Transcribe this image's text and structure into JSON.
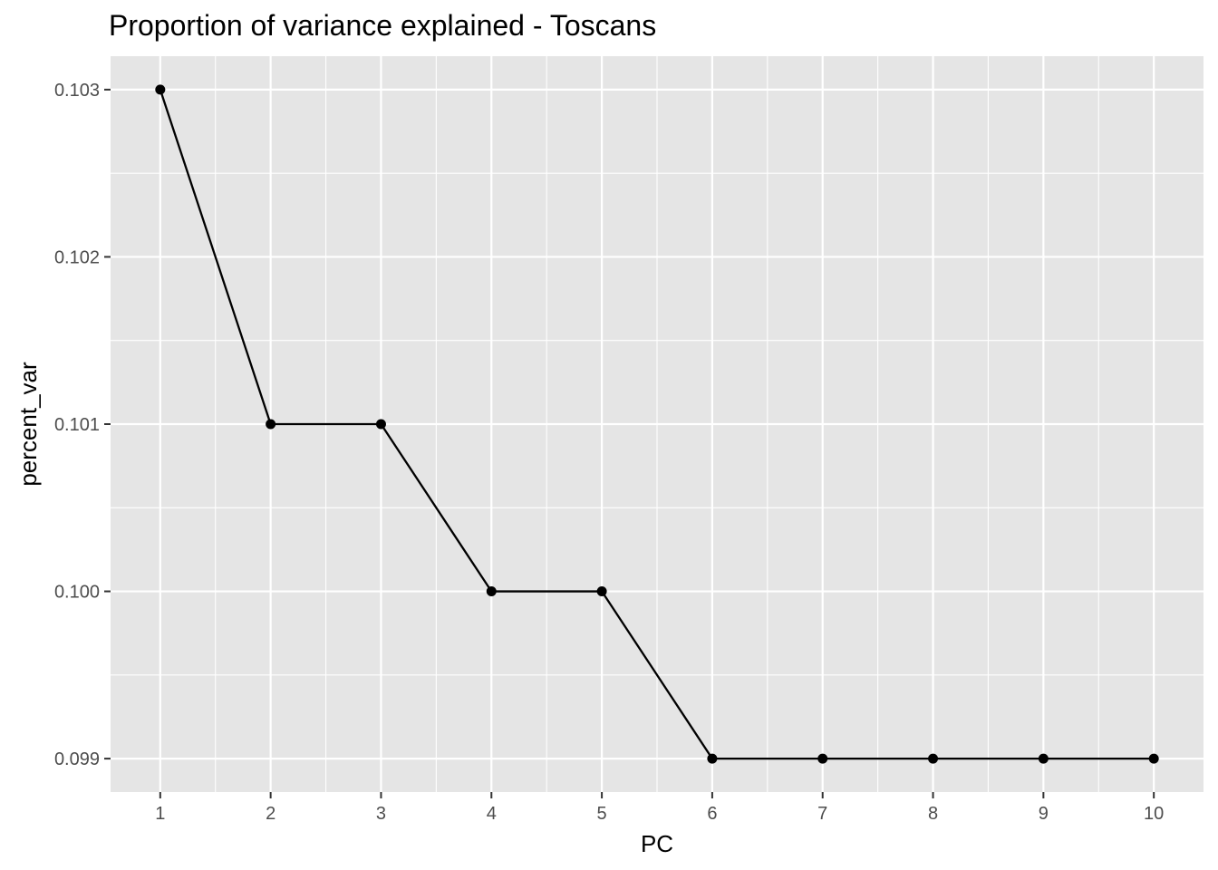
{
  "chart_data": {
    "type": "line",
    "title": "Proportion of variance explained - Toscans",
    "xlabel": "PC",
    "ylabel": "percent_var",
    "x": [
      1,
      2,
      3,
      4,
      5,
      6,
      7,
      8,
      9,
      10
    ],
    "y": [
      0.103,
      0.101,
      0.101,
      0.1,
      0.1,
      0.099,
      0.099,
      0.099,
      0.099,
      0.099
    ],
    "x_ticks": [
      "1",
      "2",
      "3",
      "4",
      "5",
      "6",
      "7",
      "8",
      "9",
      "10"
    ],
    "y_ticks": [
      "0.099",
      "0.100",
      "0.101",
      "0.102",
      "0.103"
    ],
    "y_tick_values": [
      0.099,
      0.1,
      0.101,
      0.102,
      0.103
    ],
    "xlim": [
      0.55,
      10.45
    ],
    "ylim": [
      0.0988,
      0.1032
    ],
    "grid": true,
    "markers": true,
    "colors": {
      "panel": "#e5e5e5",
      "grid": "#ffffff",
      "line": "#000000",
      "point": "#000000",
      "tick": "#333333"
    }
  }
}
